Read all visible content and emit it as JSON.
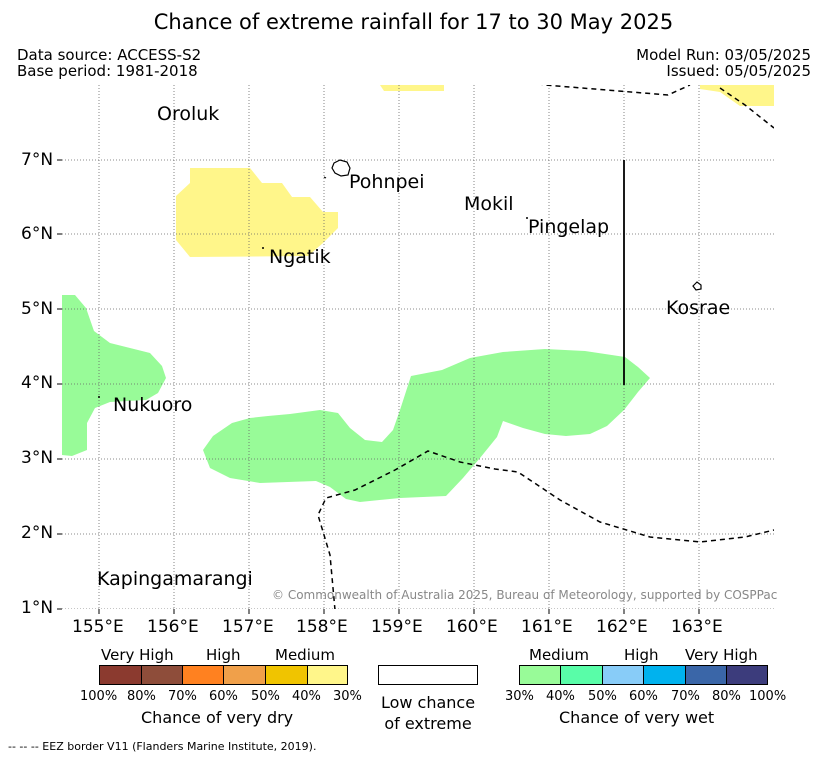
{
  "title": "Chance of extreme rainfall for 17 to 30 May 2025",
  "meta": {
    "data_source": "Data source: ACCESS-S2",
    "base_period": "Base period: 1981-2018",
    "model_run": "Model Run: 03/05/2025",
    "issued": "Issued: 05/05/2025"
  },
  "axes": {
    "lat_labels": [
      "7°N",
      "6°N",
      "5°N",
      "4°N",
      "3°N",
      "2°N",
      "1°N"
    ],
    "lon_labels": [
      "155°E",
      "156°E",
      "157°E",
      "158°E",
      "159°E",
      "160°E",
      "161°E",
      "162°E",
      "163°E"
    ]
  },
  "places": {
    "oroluk": "Oroluk",
    "pohnpei": "Pohnpei",
    "mokil": "Mokil",
    "pingelap": "Pingelap",
    "ngatik": "Ngatik",
    "kosrae": "Kosrae",
    "nukuoro": "Nukuoro",
    "kapingamarangi": "Kapingamarangi"
  },
  "copyright": "© Commonwealth of Australia 2025, Bureau of Meteorology, supported by COSPPac",
  "legend_dry": {
    "headers": [
      "Very High",
      "High",
      "Medium"
    ],
    "colors": [
      "#8b3a2f",
      "#8e4d3a",
      "#ff8120",
      "#f0a04a",
      "#f0c400",
      "#fff68a"
    ],
    "ticks": [
      "100%",
      "80%",
      "70%",
      "60%",
      "50%",
      "40%",
      "30%"
    ],
    "title": "Chance of very dry"
  },
  "legend_low": {
    "color": "#ffffff",
    "title_line1": "Low chance",
    "title_line2": "of extreme"
  },
  "legend_wet": {
    "headers": [
      "Medium",
      "High",
      "Very High"
    ],
    "colors": [
      "#98fb98",
      "#59fda8",
      "#88ccf8",
      "#00b2ee",
      "#3a66a8",
      "#3c3c7c"
    ],
    "ticks": [
      "30%",
      "40%",
      "50%",
      "60%",
      "70%",
      "80%",
      "100%"
    ],
    "title": "Chance of very wet"
  },
  "map_colors": {
    "dry_medium": "#fff68a",
    "wet_medium": "#98fb98"
  },
  "footer": "--  --  -- EEZ border V11 (Flanders Marine Institute, 2019)."
}
